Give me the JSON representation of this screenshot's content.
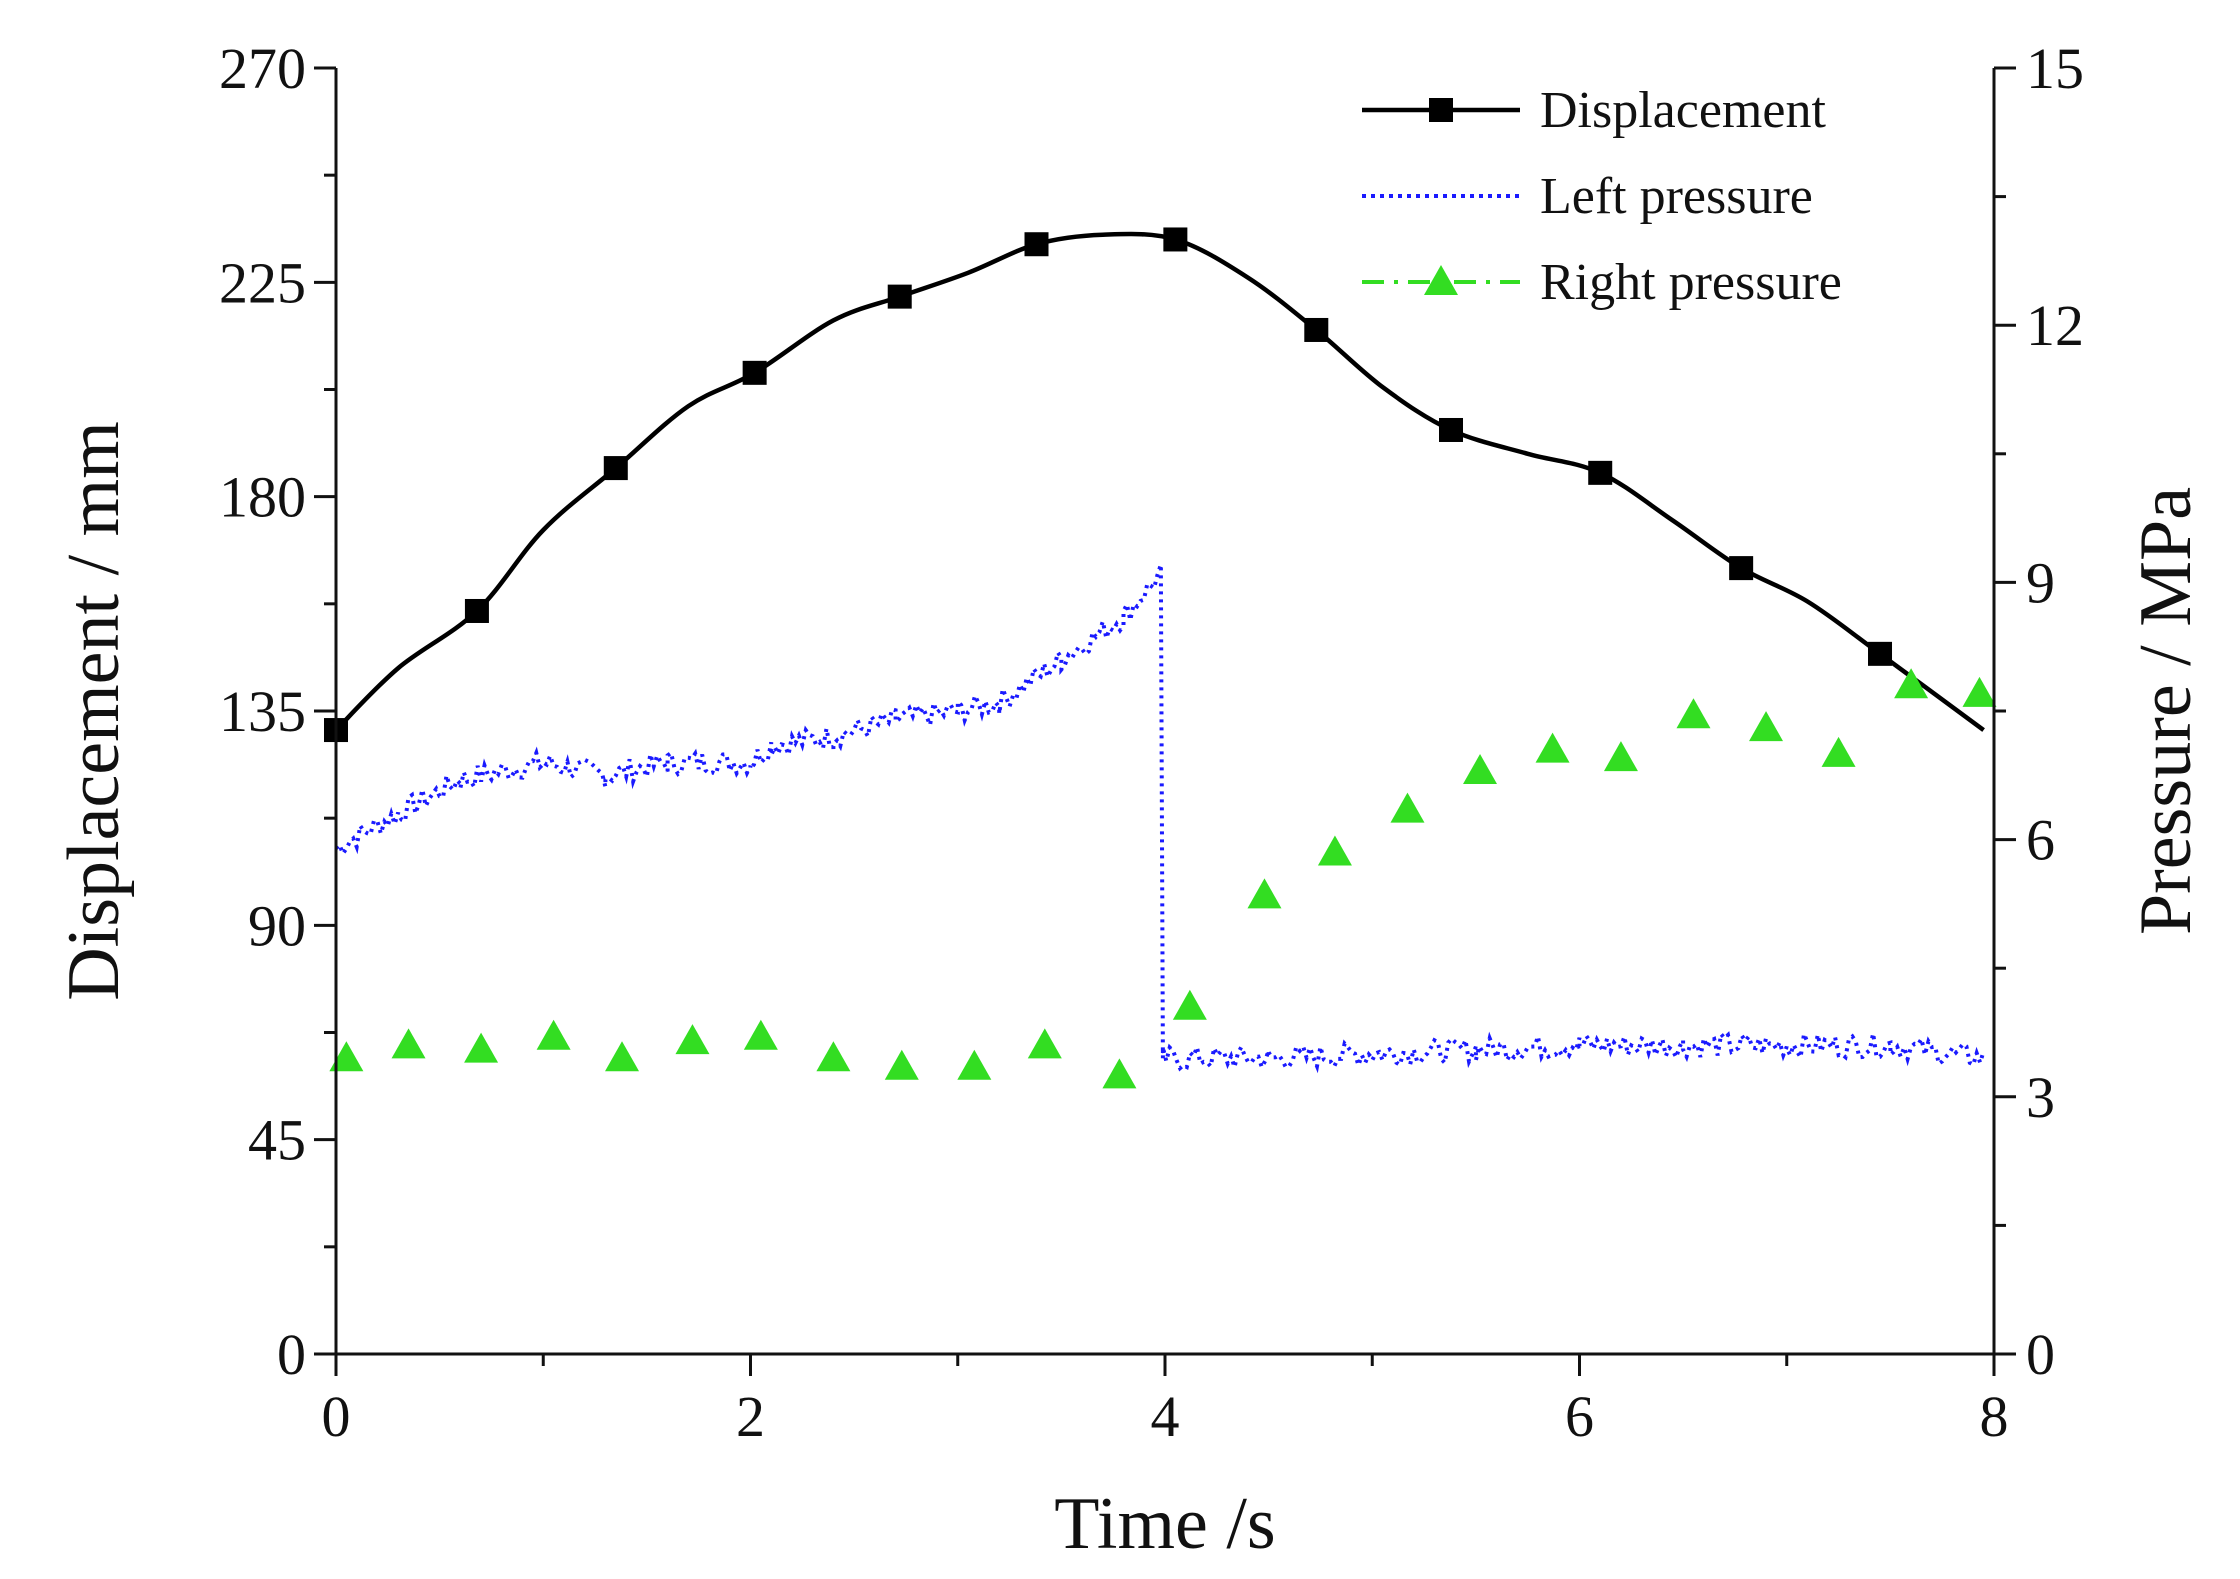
{
  "chart_data": {
    "type": "line",
    "title": "",
    "xlabel": "Time /s",
    "ylabel_left": "Displacement / mm",
    "ylabel_right": "Pressure / MPa",
    "xlim": [
      0,
      8
    ],
    "ylim_left": [
      0,
      270
    ],
    "ylim_right": [
      0,
      15
    ],
    "x_ticks": [
      "0",
      "2",
      "4",
      "6",
      "8"
    ],
    "y_left_ticks": [
      "0",
      "45",
      "90",
      "135",
      "180",
      "225",
      "270"
    ],
    "y_right_ticks": [
      "0",
      "3",
      "6",
      "9",
      "12",
      "15"
    ],
    "grid": false,
    "legend_position": "top-right",
    "colors": {
      "displacement": "#000000",
      "left_pressure": "#1a1aff",
      "right_pressure": "#33dd22"
    },
    "series": [
      {
        "name": "Displacement",
        "axis": "left",
        "style": "solid line with square markers",
        "x": [
          0,
          0.3,
          0.68,
          1.0,
          1.35,
          1.7,
          2.02,
          2.4,
          2.72,
          3.05,
          3.38,
          3.7,
          4.05,
          4.4,
          4.73,
          5.05,
          5.38,
          5.75,
          6.1,
          6.45,
          6.78,
          7.1,
          7.45,
          7.95
        ],
        "y": [
          131,
          144,
          156,
          173,
          186,
          199,
          206,
          217,
          222,
          227,
          233,
          235,
          234,
          226,
          215,
          203,
          194,
          189,
          185,
          175,
          165,
          158,
          147,
          131
        ],
        "marker_x": [
          0,
          0.68,
          1.35,
          2.02,
          2.72,
          3.38,
          4.05,
          4.73,
          5.38,
          6.1,
          6.78,
          7.45
        ],
        "marker_y": [
          131,
          156,
          186,
          206,
          222,
          233,
          234,
          215,
          194,
          185,
          165,
          147
        ]
      },
      {
        "name": "Left pressure",
        "axis": "right",
        "style": "dotted noisy line",
        "x": [
          0,
          0.3,
          0.6,
          1.0,
          1.3,
          1.6,
          2.0,
          2.1,
          2.4,
          2.7,
          3.0,
          3.2,
          3.5,
          3.8,
          3.98,
          3.99,
          4.5,
          5.0,
          5.5,
          6.0,
          6.5,
          7.0,
          7.5,
          7.95
        ],
        "y": [
          5.9,
          6.3,
          6.7,
          6.9,
          6.75,
          6.9,
          6.9,
          7.1,
          7.2,
          7.4,
          7.5,
          7.6,
          8.1,
          8.6,
          9.1,
          3.45,
          3.45,
          3.5,
          3.55,
          3.6,
          3.6,
          3.6,
          3.6,
          3.45
        ]
      },
      {
        "name": "Right pressure",
        "axis": "right",
        "style": "dash-dot line with triangle markers",
        "x": [
          0.05,
          0.35,
          0.7,
          1.05,
          1.38,
          1.72,
          2.05,
          2.4,
          2.73,
          3.08,
          3.42,
          3.78,
          4.12,
          4.48,
          4.82,
          5.17,
          5.52,
          5.87,
          6.2,
          6.55,
          6.9,
          7.25,
          7.6,
          7.93
        ],
        "y": [
          3.45,
          3.6,
          3.55,
          3.7,
          3.45,
          3.65,
          3.7,
          3.45,
          3.35,
          3.35,
          3.6,
          3.25,
          4.05,
          5.35,
          5.85,
          6.35,
          6.8,
          7.05,
          6.95,
          7.45,
          7.3,
          7.0,
          7.8,
          7.7
        ]
      }
    ]
  }
}
